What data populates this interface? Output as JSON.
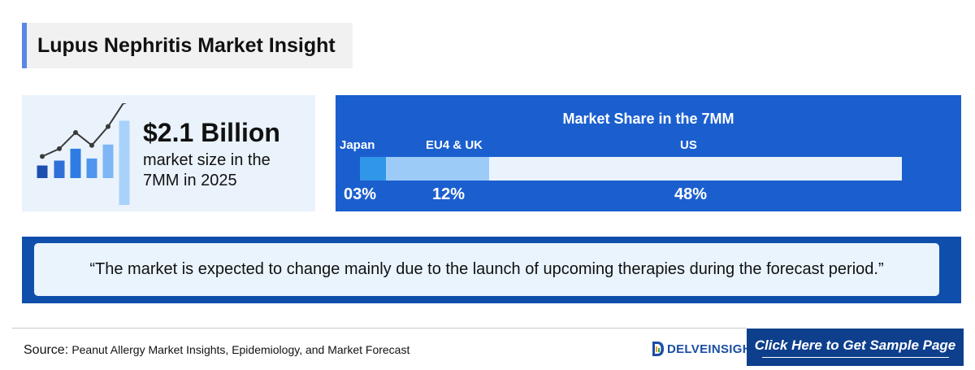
{
  "title": "Lupus Nephritis Market Insight",
  "stat": {
    "value": "$2.1 Billion",
    "description": "market size in the 7MM in 2025",
    "chart_icon": "growth-chart-icon",
    "bar_levels": [
      0.18,
      0.25,
      0.42,
      0.28,
      0.48,
      0.82
    ],
    "bar_colors": [
      "#1b4fb0",
      "#2f6fd8",
      "#2f7ce5",
      "#4f95ee",
      "#7fb6f5",
      "#a9d2fb"
    ],
    "line_levels": [
      0.33,
      0.42,
      0.61,
      0.46,
      0.68,
      0.97
    ]
  },
  "share": {
    "title": "Market Share in the 7MM",
    "segments": [
      {
        "label": "Japan",
        "percent_text": "03%",
        "value": 3,
        "color": "#2f96e8"
      },
      {
        "label": "EU4 & UK",
        "percent_text": "12%",
        "value": 12,
        "color": "#9ccbf7"
      },
      {
        "label": "US",
        "percent_text": "48%",
        "value": 48,
        "color": "#eaf3fc"
      }
    ]
  },
  "quote": "“The market is expected to change mainly due to the launch of upcoming therapies during the forecast period.”",
  "footer": {
    "source_label": "Source:",
    "source_text": "Peanut Allergy Market Insights, Epidemiology, and Market Forecast",
    "logo_text": "DELVEINSIGHT",
    "cta_label": "Click Here to Get Sample Page"
  },
  "colors": {
    "accent_blue": "#1b5fcf",
    "dark_blue": "#0f4fab",
    "cta_blue": "#0e3f8c",
    "title_accent": "#5b86e8"
  }
}
